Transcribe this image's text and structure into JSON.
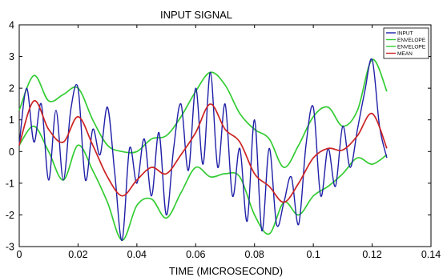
{
  "chart_data": {
    "type": "line",
    "title": "INPUT SIGNAL",
    "xlabel": "TIME (MICROSECOND)",
    "ylabel": "",
    "xlim": [
      0,
      0.14
    ],
    "ylim": [
      -3,
      4
    ],
    "xticks": [
      0,
      0.02,
      0.04,
      0.06,
      0.08,
      0.1,
      0.12,
      0.14
    ],
    "xtick_labels": [
      "0",
      "0.02",
      "0.04",
      "0.06",
      "0.08",
      "0.1",
      "0.12",
      "0.14"
    ],
    "yticks": [
      -3,
      -2,
      -1,
      0,
      1,
      2,
      3,
      4
    ],
    "ytick_labels": [
      "-3",
      "-2",
      "-1",
      "0",
      "1",
      "2",
      "3",
      "4"
    ],
    "grid": false,
    "legend_position": "top-right",
    "series": [
      {
        "name": "INPUT",
        "color": "#1f1fa8",
        "x": [
          0,
          0.0025,
          0.005,
          0.0075,
          0.01,
          0.0125,
          0.015,
          0.0175,
          0.02,
          0.0225,
          0.025,
          0.0275,
          0.03,
          0.0325,
          0.035,
          0.0375,
          0.04,
          0.0425,
          0.045,
          0.0475,
          0.05,
          0.0525,
          0.055,
          0.0575,
          0.06,
          0.0625,
          0.065,
          0.0675,
          0.07,
          0.0725,
          0.075,
          0.0775,
          0.08,
          0.0825,
          0.085,
          0.0875,
          0.09,
          0.0925,
          0.095,
          0.0975,
          0.1,
          0.1025,
          0.105,
          0.1075,
          0.11,
          0.1125,
          0.115,
          0.1175,
          0.12,
          0.1225,
          0.125
        ],
        "values": [
          0.2,
          2.0,
          0.3,
          1.5,
          -0.9,
          1.3,
          -0.9,
          1.3,
          2.0,
          -0.9,
          0.7,
          -0.1,
          1.4,
          -0.7,
          -2.8,
          0.1,
          -1.0,
          0.4,
          -1.4,
          0.6,
          -2.0,
          0.1,
          1.5,
          -0.6,
          2.0,
          -0.4,
          2.5,
          -0.5,
          1.5,
          -1.4,
          0.1,
          -2.2,
          1.0,
          -2.5,
          0.1,
          -2.3,
          -1.6,
          -0.8,
          -2.3,
          0.2,
          1.4,
          -1.4,
          0.1,
          -1.1,
          0.8,
          -0.5,
          0.7,
          1.9,
          2.9,
          0.8,
          -0.2
        ]
      },
      {
        "name": "ENVELOPE",
        "color": "#33cc33",
        "x": [
          0,
          0.005,
          0.01,
          0.015,
          0.02,
          0.025,
          0.03,
          0.035,
          0.04,
          0.045,
          0.05,
          0.055,
          0.06,
          0.065,
          0.07,
          0.075,
          0.08,
          0.085,
          0.09,
          0.095,
          0.1,
          0.105,
          0.11,
          0.115,
          0.12,
          0.125
        ],
        "values": [
          1.3,
          2.4,
          1.6,
          1.8,
          2.0,
          1.0,
          0.2,
          0.0,
          0.0,
          0.4,
          0.5,
          1.1,
          1.9,
          2.5,
          2.1,
          1.2,
          0.7,
          0.4,
          -0.5,
          0.2,
          1.1,
          1.4,
          0.8,
          1.3,
          2.9,
          1.9
        ]
      },
      {
        "name": "ENVELOPE",
        "color": "#33cc33",
        "x": [
          0,
          0.005,
          0.01,
          0.015,
          0.02,
          0.025,
          0.03,
          0.035,
          0.04,
          0.045,
          0.05,
          0.055,
          0.06,
          0.065,
          0.07,
          0.075,
          0.08,
          0.085,
          0.09,
          0.095,
          0.1,
          0.105,
          0.11,
          0.115,
          0.12,
          0.125
        ],
        "values": [
          0.2,
          0.8,
          0.0,
          -0.9,
          0.2,
          -0.6,
          -1.6,
          -2.8,
          -1.7,
          -1.5,
          -2.1,
          -1.3,
          -0.5,
          -0.8,
          -0.7,
          -0.8,
          -2.0,
          -2.6,
          -1.6,
          -2.0,
          -1.4,
          -1.1,
          -0.7,
          -0.2,
          -0.4,
          -0.1
        ]
      },
      {
        "name": "MEAN",
        "color": "#cc2222",
        "x": [
          0,
          0.005,
          0.01,
          0.015,
          0.02,
          0.025,
          0.03,
          0.035,
          0.04,
          0.045,
          0.05,
          0.055,
          0.06,
          0.065,
          0.07,
          0.075,
          0.08,
          0.085,
          0.09,
          0.095,
          0.1,
          0.105,
          0.11,
          0.115,
          0.12,
          0.125
        ],
        "values": [
          0.2,
          1.6,
          0.7,
          0.3,
          1.1,
          0.2,
          -0.8,
          -1.4,
          -0.9,
          -0.5,
          -0.7,
          -0.1,
          0.6,
          1.5,
          0.7,
          0.3,
          -0.7,
          -1.1,
          -1.6,
          -1.0,
          -0.2,
          0.1,
          0.05,
          0.5,
          1.2,
          0.1
        ]
      }
    ]
  }
}
